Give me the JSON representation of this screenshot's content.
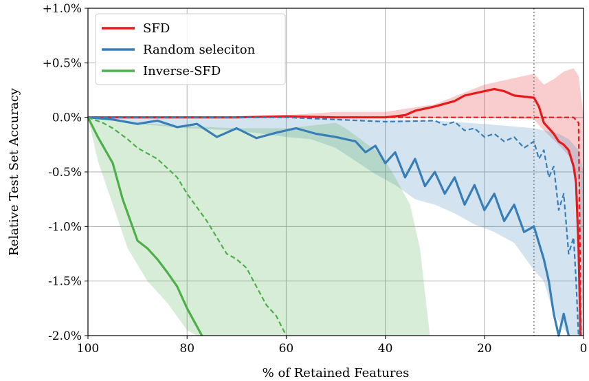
{
  "chart_data": {
    "type": "line",
    "title": "",
    "xlabel": "% of Retained Features",
    "ylabel": "Relative Test Set Accuracy",
    "xlim": [
      100,
      0
    ],
    "ylim": [
      -2.0,
      1.0
    ],
    "x_ticks": [
      100,
      80,
      60,
      40,
      20,
      0
    ],
    "y_ticks": [
      1.0,
      0.5,
      0.0,
      -0.5,
      -1.0,
      -1.5,
      -2.0
    ],
    "y_tick_labels": [
      "+1.0%",
      "+0.5%",
      "0.0%",
      "-0.5%",
      "-1.0%",
      "-1.5%",
      "-2.0%"
    ],
    "grid": true,
    "legend_position": "top-left",
    "vline_x": 10,
    "series": [
      {
        "name": "SFD",
        "color": "#e41a1c",
        "mean": [
          [
            100,
            0.0
          ],
          [
            90,
            0.0
          ],
          [
            80,
            0.0
          ],
          [
            70,
            0.0
          ],
          [
            60,
            0.01
          ],
          [
            50,
            0.0
          ],
          [
            40,
            0.0
          ],
          [
            36,
            0.02
          ],
          [
            34,
            0.06
          ],
          [
            30,
            0.1
          ],
          [
            26,
            0.15
          ],
          [
            24,
            0.2
          ],
          [
            20,
            0.24
          ],
          [
            18,
            0.26
          ],
          [
            16,
            0.24
          ],
          [
            14,
            0.2
          ],
          [
            12,
            0.19
          ],
          [
            10,
            0.18
          ],
          [
            9,
            0.1
          ],
          [
            8,
            -0.05
          ],
          [
            7,
            -0.1
          ],
          [
            6,
            -0.15
          ],
          [
            5,
            -0.22
          ],
          [
            4,
            -0.25
          ],
          [
            3,
            -0.3
          ],
          [
            2,
            -0.45
          ],
          [
            1.5,
            -0.6
          ],
          [
            1,
            -1.2
          ],
          [
            0.6,
            -2.0
          ]
        ],
        "median": [
          [
            100,
            0.0
          ],
          [
            60,
            0.0
          ],
          [
            40,
            0.0
          ],
          [
            20,
            0.0
          ],
          [
            10,
            0.0
          ],
          [
            5,
            0.0
          ],
          [
            2,
            0.0
          ],
          [
            1,
            -0.05
          ],
          [
            0.5,
            -2.0
          ]
        ],
        "band_upper": [
          [
            100,
            0.0
          ],
          [
            80,
            0.0
          ],
          [
            60,
            0.02
          ],
          [
            50,
            0.05
          ],
          [
            40,
            0.05
          ],
          [
            30,
            0.12
          ],
          [
            20,
            0.3
          ],
          [
            15,
            0.35
          ],
          [
            10,
            0.4
          ],
          [
            8,
            0.3
          ],
          [
            6,
            0.35
          ],
          [
            4,
            0.42
          ],
          [
            2,
            0.45
          ],
          [
            1,
            0.38
          ],
          [
            0.5,
            0.2
          ],
          [
            0,
            0.0
          ]
        ],
        "band_lower": [
          [
            0,
            -2.0
          ],
          [
            1,
            -0.6
          ],
          [
            3,
            -0.35
          ],
          [
            5,
            -0.25
          ],
          [
            8,
            -0.12
          ],
          [
            10,
            -0.02
          ],
          [
            20,
            0.0
          ],
          [
            40,
            0.0
          ],
          [
            60,
            0.0
          ],
          [
            100,
            0.0
          ]
        ]
      },
      {
        "name": "Random seleciton",
        "color": "#377eb8",
        "mean": [
          [
            100,
            0.0
          ],
          [
            95,
            -0.02
          ],
          [
            90,
            -0.06
          ],
          [
            86,
            -0.03
          ],
          [
            82,
            -0.09
          ],
          [
            78,
            -0.06
          ],
          [
            74,
            -0.18
          ],
          [
            70,
            -0.1
          ],
          [
            66,
            -0.19
          ],
          [
            62,
            -0.14
          ],
          [
            58,
            -0.1
          ],
          [
            54,
            -0.15
          ],
          [
            50,
            -0.18
          ],
          [
            46,
            -0.22
          ],
          [
            44,
            -0.32
          ],
          [
            42,
            -0.26
          ],
          [
            40,
            -0.42
          ],
          [
            38,
            -0.32
          ],
          [
            36,
            -0.55
          ],
          [
            34,
            -0.38
          ],
          [
            32,
            -0.63
          ],
          [
            30,
            -0.5
          ],
          [
            28,
            -0.7
          ],
          [
            26,
            -0.55
          ],
          [
            24,
            -0.8
          ],
          [
            22,
            -0.62
          ],
          [
            20,
            -0.85
          ],
          [
            18,
            -0.7
          ],
          [
            16,
            -0.95
          ],
          [
            14,
            -0.8
          ],
          [
            12,
            -1.05
          ],
          [
            10,
            -1.0
          ],
          [
            9,
            -1.15
          ],
          [
            8,
            -1.3
          ],
          [
            7,
            -1.5
          ],
          [
            6,
            -1.8
          ],
          [
            5,
            -2.0
          ],
          [
            4,
            -1.8
          ],
          [
            3,
            -2.0
          ]
        ],
        "median": [
          [
            100,
            0.0
          ],
          [
            80,
            0.0
          ],
          [
            60,
            0.0
          ],
          [
            50,
            -0.02
          ],
          [
            40,
            -0.04
          ],
          [
            30,
            -0.03
          ],
          [
            28,
            -0.07
          ],
          [
            26,
            -0.04
          ],
          [
            24,
            -0.12
          ],
          [
            22,
            -0.1
          ],
          [
            20,
            -0.18
          ],
          [
            18,
            -0.15
          ],
          [
            16,
            -0.22
          ],
          [
            14,
            -0.18
          ],
          [
            12,
            -0.28
          ],
          [
            10,
            -0.22
          ],
          [
            9,
            -0.38
          ],
          [
            8,
            -0.3
          ],
          [
            7,
            -0.55
          ],
          [
            6,
            -0.45
          ],
          [
            5,
            -0.85
          ],
          [
            4,
            -0.7
          ],
          [
            3,
            -1.25
          ],
          [
            2,
            -1.1
          ],
          [
            1.5,
            -1.5
          ],
          [
            1,
            -2.0
          ]
        ],
        "band_upper": [
          [
            100,
            0.0
          ],
          [
            80,
            0.0
          ],
          [
            60,
            0.0
          ],
          [
            40,
            -0.02
          ],
          [
            30,
            -0.03
          ],
          [
            20,
            -0.06
          ],
          [
            10,
            -0.1
          ],
          [
            5,
            -0.15
          ],
          [
            3,
            -0.2
          ],
          [
            1,
            -0.3
          ],
          [
            0,
            -0.5
          ]
        ],
        "band_lower": [
          [
            0,
            -2.0
          ],
          [
            3,
            -2.0
          ],
          [
            6,
            -1.8
          ],
          [
            8,
            -1.5
          ],
          [
            10,
            -1.4
          ],
          [
            14,
            -1.15
          ],
          [
            18,
            -1.05
          ],
          [
            22,
            -0.98
          ],
          [
            26,
            -0.88
          ],
          [
            30,
            -0.8
          ],
          [
            34,
            -0.75
          ],
          [
            38,
            -0.62
          ],
          [
            42,
            -0.52
          ],
          [
            46,
            -0.4
          ],
          [
            50,
            -0.28
          ],
          [
            55,
            -0.2
          ],
          [
            60,
            -0.18
          ],
          [
            70,
            -0.12
          ],
          [
            80,
            -0.1
          ],
          [
            90,
            -0.06
          ],
          [
            100,
            0.0
          ]
        ]
      },
      {
        "name": "Inverse-SFD",
        "color": "#4daf4a",
        "mean": [
          [
            100,
            0.0
          ],
          [
            98,
            -0.18
          ],
          [
            95,
            -0.42
          ],
          [
            93,
            -0.75
          ],
          [
            90,
            -1.13
          ],
          [
            88,
            -1.2
          ],
          [
            86,
            -1.3
          ],
          [
            84,
            -1.42
          ],
          [
            82,
            -1.55
          ],
          [
            80,
            -1.75
          ],
          [
            77,
            -2.0
          ]
        ],
        "median": [
          [
            100,
            0.0
          ],
          [
            97,
            -0.05
          ],
          [
            95,
            -0.1
          ],
          [
            92,
            -0.2
          ],
          [
            90,
            -0.28
          ],
          [
            86,
            -0.38
          ],
          [
            82,
            -0.55
          ],
          [
            80,
            -0.7
          ],
          [
            76,
            -0.95
          ],
          [
            72,
            -1.25
          ],
          [
            70,
            -1.3
          ],
          [
            68,
            -1.38
          ],
          [
            66,
            -1.55
          ],
          [
            64,
            -1.72
          ],
          [
            62,
            -1.82
          ],
          [
            60,
            -2.0
          ]
        ],
        "band_upper": [
          [
            100,
            0.0
          ],
          [
            90,
            -0.05
          ],
          [
            80,
            -0.08
          ],
          [
            70,
            -0.1
          ],
          [
            60,
            -0.1
          ],
          [
            50,
            -0.05
          ],
          [
            48,
            -0.1
          ],
          [
            45,
            -0.2
          ],
          [
            42,
            -0.3
          ],
          [
            40,
            -0.4
          ],
          [
            38,
            -0.55
          ],
          [
            35,
            -0.8
          ],
          [
            33,
            -1.2
          ],
          [
            32,
            -1.6
          ],
          [
            31,
            -2.0
          ]
        ],
        "band_lower": [
          [
            78,
            -2.0
          ],
          [
            80,
            -1.95
          ],
          [
            84,
            -1.7
          ],
          [
            88,
            -1.5
          ],
          [
            92,
            -1.2
          ],
          [
            95,
            -0.8
          ],
          [
            98,
            -0.4
          ],
          [
            100,
            0.0
          ]
        ]
      }
    ]
  }
}
